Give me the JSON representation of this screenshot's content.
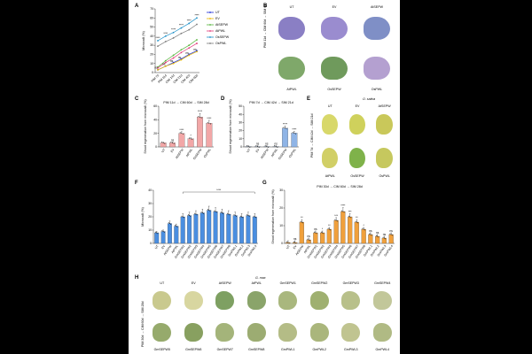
{
  "panel_labels": [
    "A",
    "B",
    "C",
    "D",
    "E",
    "F",
    "G",
    "H"
  ],
  "chart_data": [
    {
      "id": "A",
      "type": "line",
      "ylabel": "Microcalli (%)",
      "ylim": [
        0,
        70
      ],
      "yticks": [
        0,
        10,
        20,
        30,
        40,
        50,
        60,
        70
      ],
      "categories": [
        "PIM 7d",
        "PIM 11d",
        "CIM 14d",
        "CIM 21d",
        "CIM 42d",
        "CIM 60d"
      ],
      "series": [
        {
          "name": "UT",
          "color": "#1a2bd6",
          "values": [
            3,
            7,
            11,
            15,
            20,
            24
          ]
        },
        {
          "name": "EV",
          "color": "#e8b800",
          "values": [
            3,
            7,
            10,
            14,
            19,
            23
          ]
        },
        {
          "name": "AtSEPW",
          "color": "#55b43c",
          "values": [
            6,
            13,
            19,
            25,
            30,
            36
          ]
        },
        {
          "name": "AtPWL",
          "color": "#e23a7a",
          "values": [
            5,
            11,
            16,
            22,
            27,
            32
          ]
        },
        {
          "name": "OsSEPW",
          "color": "#1e90c8",
          "values": [
            35,
            40,
            44,
            49,
            54,
            60
          ]
        },
        {
          "name": "OsPWL",
          "color": "#7c7c7c",
          "values": [
            29,
            34,
            38,
            43,
            47,
            53
          ]
        }
      ],
      "annotations": [
        "****",
        "ns"
      ]
    },
    {
      "id": "C",
      "type": "bar",
      "title": "PIM 11d → CIM 60d → SIM 28d",
      "ylabel": "Shoot regeneration from microcalli (%)",
      "ylim": [
        0,
        60
      ],
      "yticks": [
        0,
        20,
        40,
        60
      ],
      "categories": [
        "UT",
        "EV",
        "AtSEPW",
        "AtPWL",
        "OsSEPW",
        "OsPWL"
      ],
      "values": [
        6,
        6,
        20,
        12,
        44,
        35
      ],
      "labels": [
        "",
        "ns",
        "****",
        "*",
        "****",
        "****"
      ],
      "color": "#f2a7a7"
    },
    {
      "id": "D",
      "type": "bar",
      "title": "PIM 7d → CIM 42d → SIM 21d",
      "ylabel": "Shoot regeneration from microcalli (%)",
      "ylim": [
        0,
        50
      ],
      "yticks": [
        0,
        10,
        20,
        30,
        40,
        50
      ],
      "categories": [
        "UT",
        "EV",
        "AtSEPW",
        "AtPWL",
        "OsSEPW",
        "OsPWL"
      ],
      "values": [
        0.5,
        0.5,
        0.5,
        0.5,
        23,
        17
      ],
      "labels": [
        "",
        "ns",
        "ns",
        "ns",
        "****",
        "****"
      ],
      "color": "#8fb4e6"
    },
    {
      "id": "F",
      "type": "bar",
      "ylabel": "Microcalli (%)",
      "ylim": [
        0,
        40
      ],
      "yticks": [
        0,
        10,
        20,
        30,
        40
      ],
      "categories": [
        "UT",
        "EV",
        "AtSEPW",
        "AtPWL",
        "GmSEPW1",
        "GmSEPW2",
        "GmSEPW3",
        "GmSEPW4",
        "GmSEPW5",
        "GmSEPW6",
        "GmSEPW7",
        "GmSEPW8",
        "GmPWL1",
        "GmPWL2",
        "GmPWL3",
        "GmPWL4"
      ],
      "values": [
        8,
        9,
        15,
        13,
        20,
        21,
        22,
        23,
        25,
        24,
        23,
        22,
        21,
        20,
        21,
        20
      ],
      "bracket_label": "****",
      "color": "#4a8ee0"
    },
    {
      "id": "G",
      "type": "bar",
      "title": "PIM 30d → CIM 60d → SIM 28d",
      "ylabel": "Shoot regeneration from microcalli (%)",
      "ylim": [
        0,
        30
      ],
      "yticks": [
        0,
        10,
        20,
        30
      ],
      "categories": [
        "UT",
        "EV",
        "AtSEPW",
        "AtPWL",
        "GmSEPW1",
        "GmSEPW2",
        "GmSEPW3",
        "GmSEPW4",
        "GmSEPW5",
        "GmSEPW6",
        "GmSEPW7",
        "GmSEPW8",
        "GmPWL1",
        "GmPWL2",
        "GmPWL3",
        "GmPWL4"
      ],
      "values": [
        0.5,
        0.5,
        12,
        2,
        6,
        6,
        8,
        13,
        18,
        15,
        12,
        8,
        5,
        4,
        3,
        5
      ],
      "labels": [
        "",
        "ns",
        "**",
        "ns",
        "ns",
        "*",
        "**",
        "***",
        "****",
        "***",
        "**",
        "*",
        "ns",
        "ns",
        "ns",
        "ns"
      ],
      "color": "#f0a03c"
    }
  ],
  "panel_b": {
    "side_label": "PIM 11d → CIM 60d → SIM 6d",
    "top": [
      "UT",
      "EV",
      "AtSEPW"
    ],
    "bottom": [
      "AtPWL",
      "OsSEPW",
      "OsPWL"
    ]
  },
  "panel_e": {
    "species": "O. sativa",
    "side_label": "PIM 7d → CIM 42d → SIM 21d",
    "top": [
      "UT",
      "EV",
      "AtSEPW"
    ],
    "bottom": [
      "AtPWL",
      "OsSEPW",
      "OsPWL"
    ]
  },
  "panel_h": {
    "species": "G. max",
    "side_label": "PIM 30d → CIM 60d → SIM 28d",
    "top": [
      "UT",
      "EV",
      "AtSEPW",
      "AtPWL",
      "GmSEPW1",
      "GmSEPW2",
      "GmSEPW3",
      "GmSEPW4"
    ],
    "bottom": [
      "GmSEPW5",
      "GmSEPW6",
      "GmSEPW7",
      "GmSEPW8",
      "GmPWL1",
      "GmPWL2",
      "GmPWL3",
      "GmPWL4"
    ]
  },
  "colors": {
    "background": "#000000",
    "figure": "#ffffff"
  }
}
